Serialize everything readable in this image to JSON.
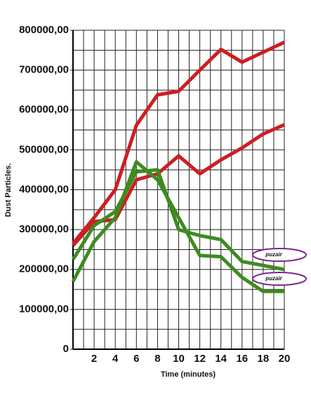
{
  "chart_data": {
    "type": "line",
    "y_label": "Dust Particles.",
    "x_label": "Time (minutes)",
    "x": [
      0,
      2,
      4,
      6,
      8,
      10,
      12,
      14,
      16,
      18,
      20
    ],
    "series": [
      {
        "color": "#cc1f24",
        "values": [
          265000,
          330000,
          400000,
          562000,
          638000,
          647000,
          700000,
          752000,
          720000,
          745000,
          770000
        ]
      },
      {
        "color": "#cc1f24",
        "values": [
          260000,
          320000,
          325000,
          425000,
          440000,
          485000,
          440000,
          475000,
          505000,
          540000,
          563000
        ]
      },
      {
        "color": "#3d8c1f",
        "values": [
          225000,
          310000,
          345000,
          445000,
          450000,
          300000,
          285000,
          275000,
          220000,
          210000,
          200000
        ]
      },
      {
        "color": "#3d8c1f",
        "values": [
          170000,
          270000,
          330000,
          470000,
          425000,
          330000,
          235000,
          232000,
          180000,
          145000,
          145000
        ]
      }
    ],
    "xlim": [
      0,
      20
    ],
    "ylim": [
      0,
      800000
    ],
    "xticks": [
      2,
      4,
      6,
      8,
      10,
      12,
      14,
      16,
      18,
      20
    ],
    "yticks": [
      0,
      {
        "value": 100000,
        "label": "100000,00"
      },
      {
        "value": 200000,
        "label": "200000,00"
      },
      {
        "value": 300000,
        "label": "300000,00"
      },
      {
        "value": 400000,
        "label": "400000,00"
      },
      {
        "value": 500000,
        "label": "500000,00"
      },
      {
        "value": 600000,
        "label": "600000,00"
      },
      {
        "value": 700000,
        "label": "700000,00"
      },
      {
        "value": 800000,
        "label": "800000,00"
      }
    ],
    "x_minor_ticks": [
      1,
      3,
      5,
      7,
      9,
      11,
      13,
      15,
      17,
      19
    ],
    "y_minor_ticks": [
      50000,
      150000,
      250000,
      350000,
      450000,
      550000,
      650000,
      750000
    ],
    "grid": true,
    "watermarks": [
      "puzair",
      "puzair"
    ]
  }
}
